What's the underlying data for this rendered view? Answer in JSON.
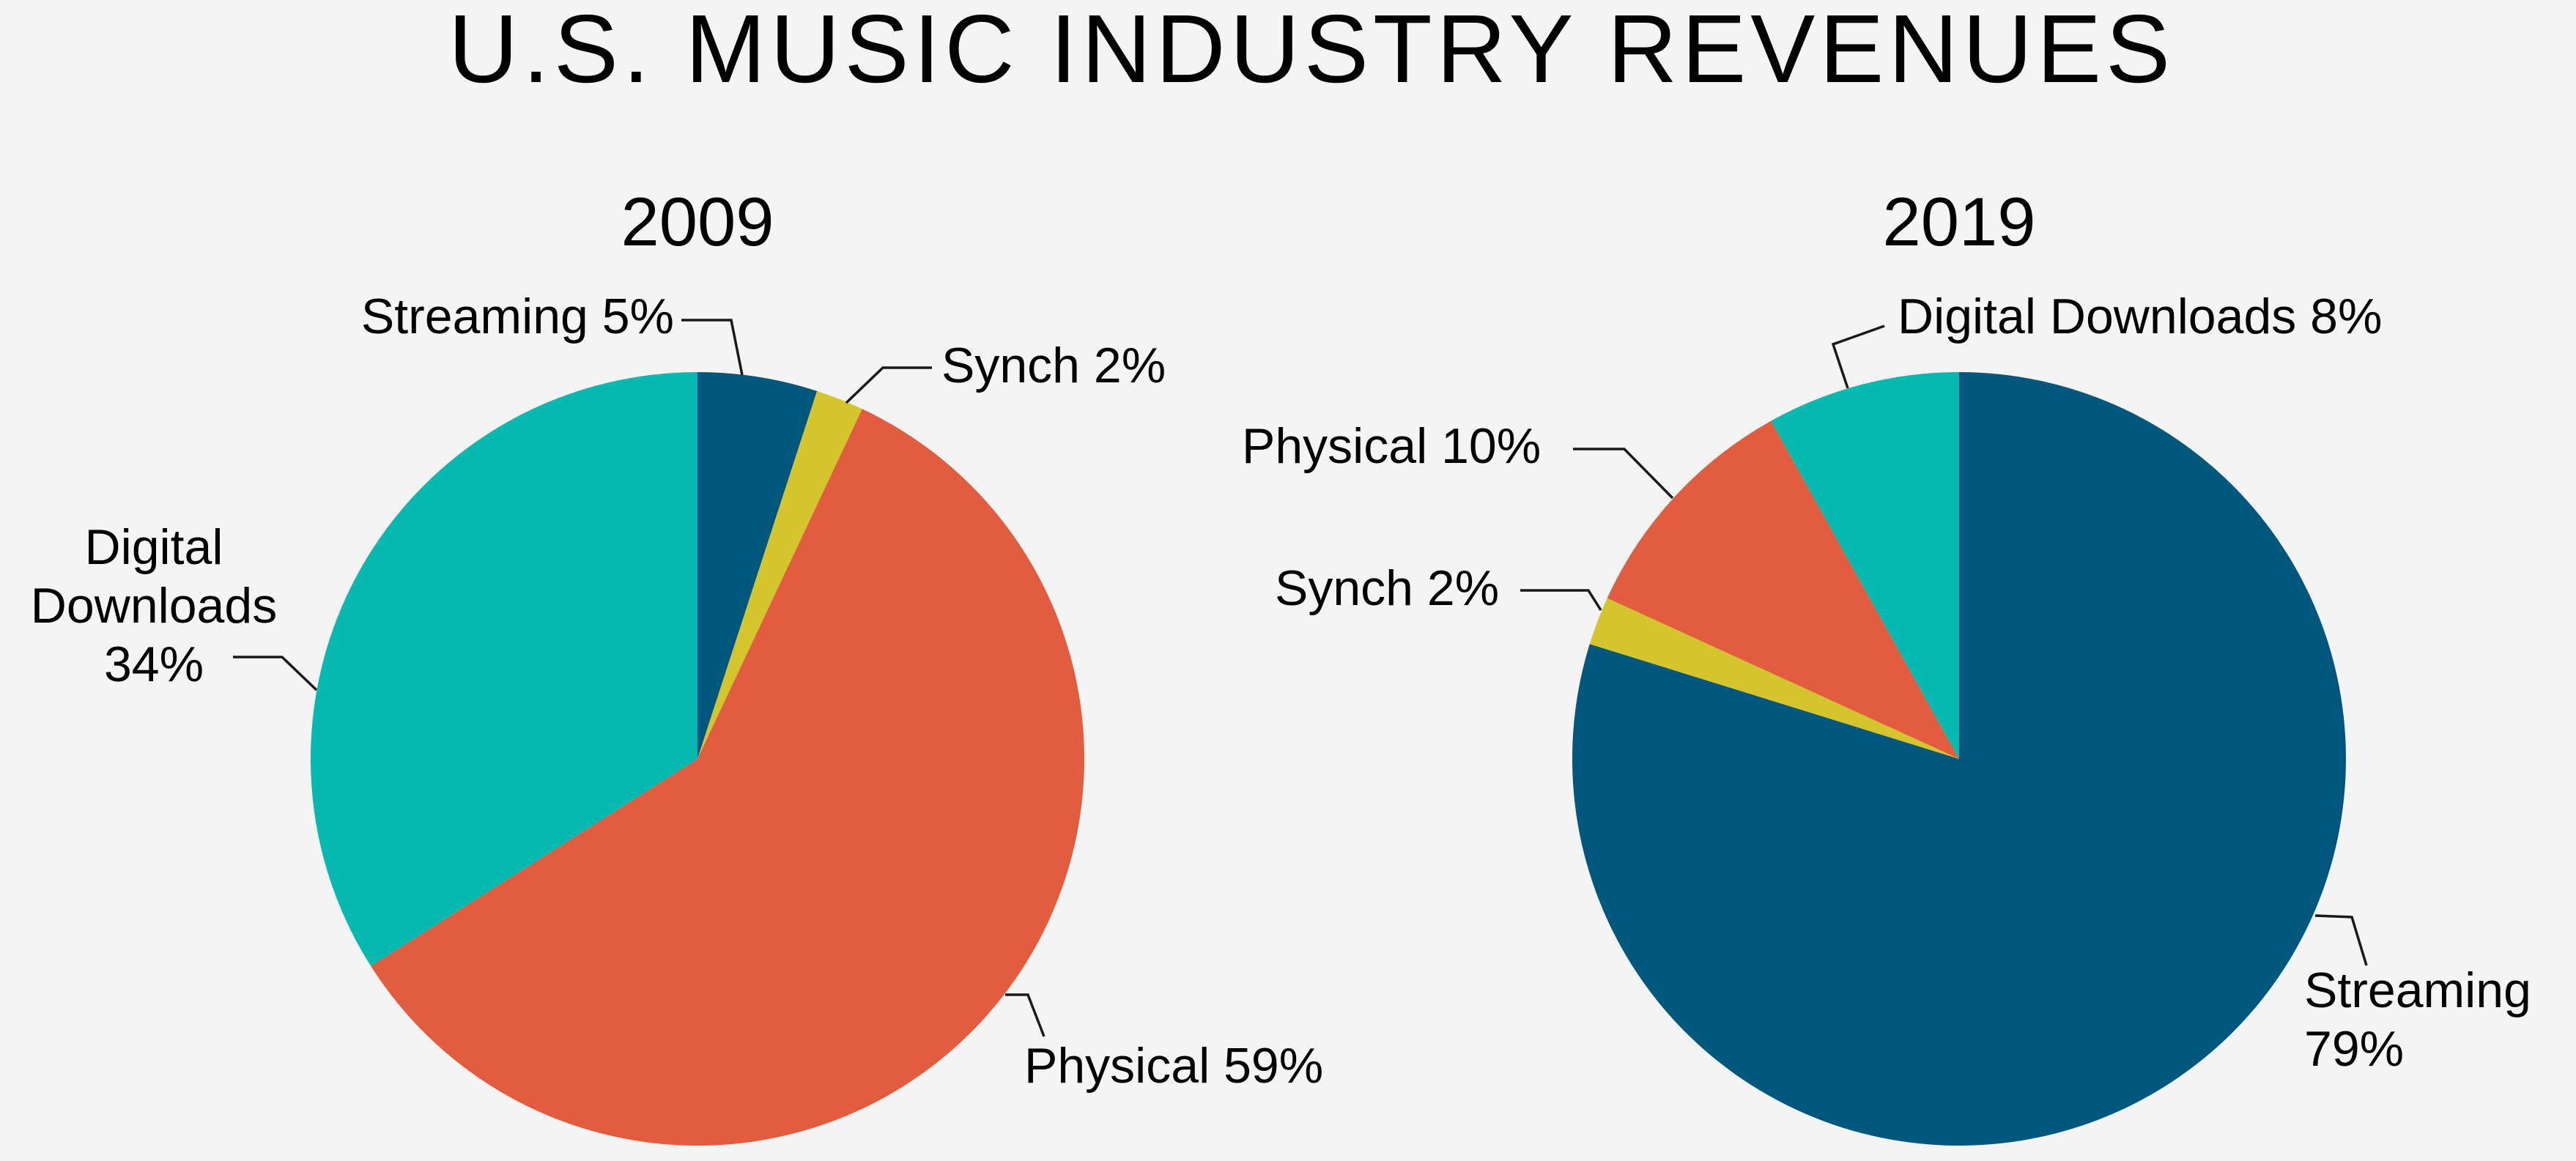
{
  "chart_data": {
    "title": "U.S. MUSIC INDUSTRY REVENUES",
    "type": "pie",
    "charts": [
      {
        "title": "2009",
        "slices": [
          {
            "label": "Streaming",
            "value": 5,
            "value_label": "5%",
            "color": "#00577d",
            "label_lines": [
              "Streaming 5%"
            ]
          },
          {
            "label": "Synch",
            "value": 2,
            "value_label": "2%",
            "color": "#d4c52d",
            "label_lines": [
              "Synch 2%"
            ]
          },
          {
            "label": "Physical",
            "value": 59,
            "value_label": "59%",
            "color": "#e25c3f",
            "label_lines": [
              "Physical 59%"
            ]
          },
          {
            "label": "Digital Downloads",
            "value": 34,
            "value_label": "34%",
            "color": "#04b9b0",
            "label_lines": [
              "Digital",
              "Downloads",
              "34%"
            ]
          }
        ]
      },
      {
        "title": "2019",
        "slices": [
          {
            "label": "Streaming",
            "value": 79,
            "value_label": "79%",
            "color": "#00577d",
            "label_lines": [
              "Streaming",
              "79%"
            ]
          },
          {
            "label": "Synch",
            "value": 2,
            "value_label": "2%",
            "color": "#d4c52d",
            "label_lines": [
              "Synch 2%"
            ]
          },
          {
            "label": "Physical",
            "value": 10,
            "value_label": "10%",
            "color": "#e25c3f",
            "label_lines": [
              "Physical 10%"
            ]
          },
          {
            "label": "Digital Downloads",
            "value": 8,
            "value_label": "8%",
            "color": "#04b9b0",
            "label_lines": [
              "Digital Downloads 8%"
            ]
          }
        ]
      }
    ]
  }
}
